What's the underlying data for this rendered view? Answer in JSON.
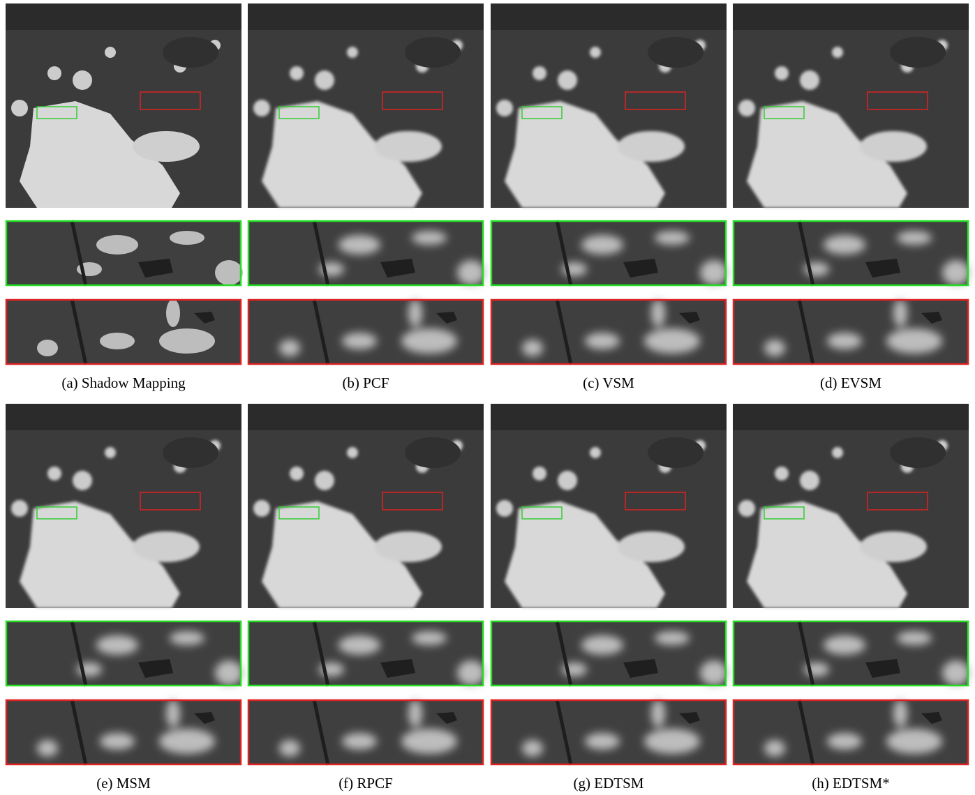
{
  "panels": [
    {
      "caption": "(a) Shadow Mapping"
    },
    {
      "caption": "(b) PCF"
    },
    {
      "caption": "(c) VSM"
    },
    {
      "caption": "(d) EVSM"
    },
    {
      "caption": "(e) MSM"
    },
    {
      "caption": "(f) RPCF"
    },
    {
      "caption": "(g) EDTSM"
    },
    {
      "caption": "(h) EDTSM*"
    }
  ]
}
